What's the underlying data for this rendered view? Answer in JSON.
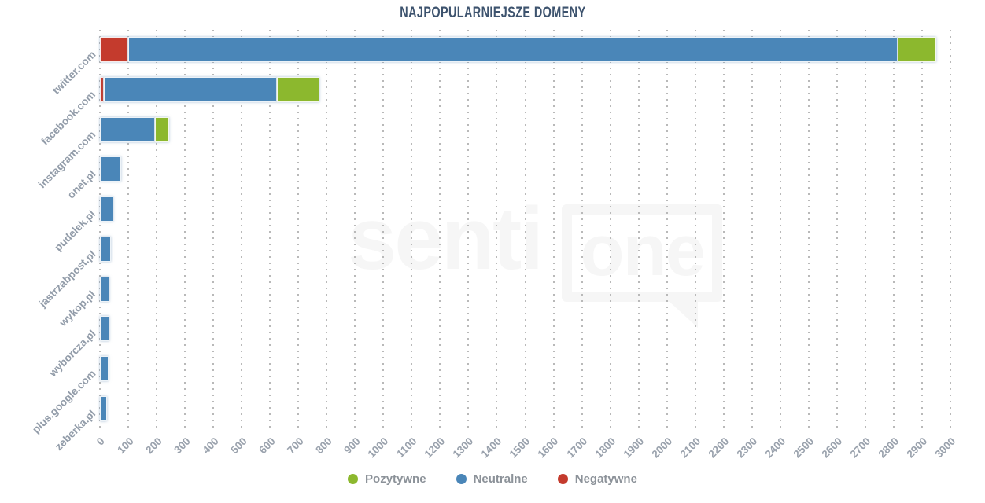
{
  "title": "NAJPOPULARNIEJSZE DOMENY",
  "watermark": {
    "text": "senti",
    "boxed_text": "one"
  },
  "colors": {
    "positive": "#8cb82e",
    "neutral": "#4a86b8",
    "negative": "#c43b2d",
    "title_text": "#3d536e",
    "axis_label": "#929ca9",
    "legend_text": "#8c9299",
    "grid_dot": "#b9b9b9",
    "watermark": "#f6f6f6"
  },
  "chart_data": {
    "type": "bar",
    "orientation": "horizontal",
    "stacked": true,
    "title": "NAJPOPULARNIEJSZE DOMENY",
    "categories": [
      "twitter.com",
      "facebook.com",
      "instagram.com",
      "onet.pl",
      "pudelek.pl",
      "jastrzabpost.pl",
      "wykop.pl",
      "wyborcza.pl",
      "plus.google.com",
      "zeberka.pl"
    ],
    "series": [
      {
        "name": "Negatywne",
        "color": "#c43b2d",
        "values": [
          100,
          15,
          0,
          0,
          0,
          0,
          0,
          0,
          0,
          0
        ]
      },
      {
        "name": "Neutralne",
        "color": "#4a86b8",
        "values": [
          2715,
          610,
          195,
          75,
          48,
          38,
          34,
          33,
          31,
          26
        ]
      },
      {
        "name": "Pozytywne",
        "color": "#8cb82e",
        "values": [
          135,
          150,
          50,
          0,
          0,
          0,
          0,
          0,
          0,
          0
        ]
      }
    ],
    "legend": [
      "Pozytywne",
      "Neutralne",
      "Negatywne"
    ],
    "legend_position": "bottom-center",
    "xlim": [
      0,
      3000
    ],
    "tick_step": 100,
    "grid": "dotted-vertical"
  }
}
